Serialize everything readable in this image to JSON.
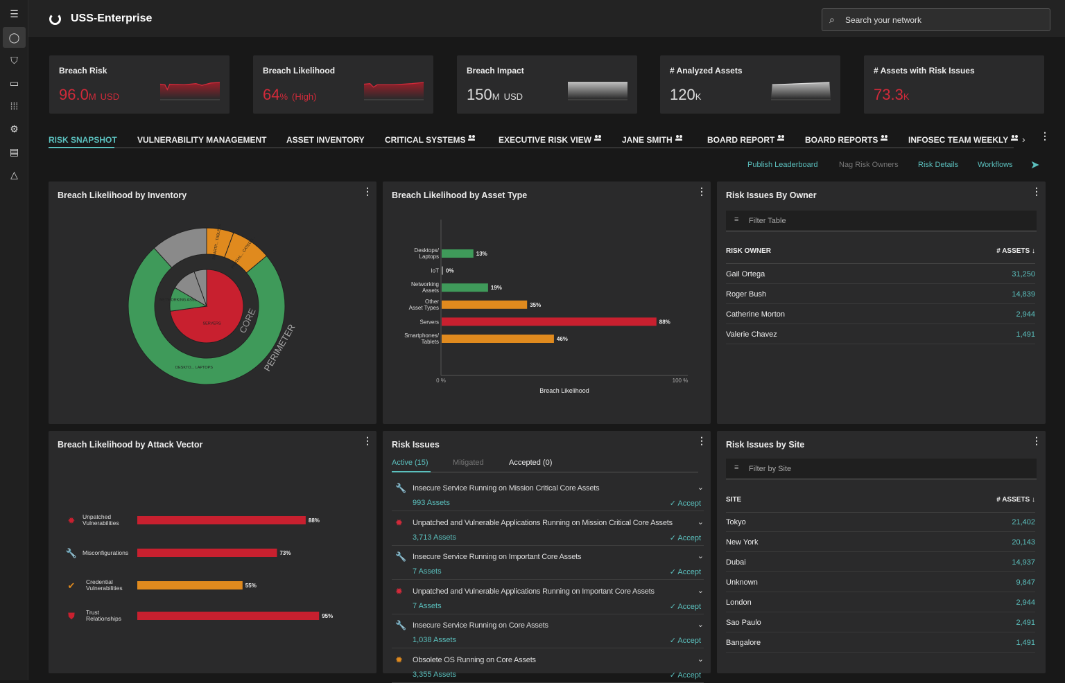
{
  "header": {
    "title": "USS-Enterprise",
    "search_placeholder": "Search your network"
  },
  "sidebar": {
    "items": [
      {
        "icon": "menu-icon"
      },
      {
        "icon": "dashboard-icon"
      },
      {
        "icon": "shield-icon"
      },
      {
        "icon": "devices-icon"
      },
      {
        "icon": "apps-grid-icon"
      },
      {
        "icon": "gear-icon"
      },
      {
        "icon": "report-icon"
      },
      {
        "icon": "warning-icon"
      }
    ]
  },
  "kpis": [
    {
      "label": "Breach Risk",
      "value": "96.0",
      "unit": "M",
      "suffix": "USD",
      "color": "#d22a3a"
    },
    {
      "label": "Breach Likelihood",
      "value": "64",
      "unit": "%",
      "suffix": "(High)",
      "color": "#d22a3a"
    },
    {
      "label": "Breach Impact",
      "value": "150",
      "unit": "M",
      "suffix": "USD",
      "color": "#dddddd"
    },
    {
      "label": "# Analyzed Assets",
      "value": "120",
      "unit": "K",
      "suffix": "",
      "color": "#dddddd"
    },
    {
      "label": "# Assets with Risk Issues",
      "value": "73.3",
      "unit": "K",
      "suffix": "",
      "color": "#d22a3a"
    }
  ],
  "tabs": [
    {
      "label": "RISK SNAPSHOT",
      "shared": false
    },
    {
      "label": "VULNERABILITY MANAGEMENT",
      "shared": false
    },
    {
      "label": "ASSET INVENTORY",
      "shared": false
    },
    {
      "label": "CRITICAL SYSTEMS",
      "shared": true
    },
    {
      "label": "EXECUTIVE RISK VIEW",
      "shared": true
    },
    {
      "label": "JANE SMITH",
      "shared": true
    },
    {
      "label": "BOARD REPORT",
      "shared": true
    },
    {
      "label": "BOARD REPORTS",
      "shared": true
    },
    {
      "label": "INFOSEC TEAM WEEKLY",
      "shared": true
    }
  ],
  "actions": {
    "publish": "Publish Leaderboard",
    "nag": "Nag Risk Owners",
    "details": "Risk Details",
    "workflows": "Workflows"
  },
  "colors": {
    "accent": "#5bc0be",
    "red": "#c8202f",
    "green": "#3f9a5a",
    "orange": "#e08a1e",
    "gray": "#8a8a8a"
  },
  "chart_data": [
    {
      "type": "pie",
      "title": "Breach Likelihood by Inventory",
      "rings": [
        {
          "label": "PERIMETER",
          "segments": [
            {
              "label": "",
              "share": 0.117,
              "color": "#8a8a8a"
            },
            {
              "label": "SMARTP... TABLETS",
              "share": 0.056,
              "color": "#e08a1e"
            },
            {
              "label": "PARTIAL... CATEGO...",
              "share": 0.083,
              "color": "#e08a1e"
            },
            {
              "label": "DESKTO... LAPTOPS",
              "share": 0.744,
              "color": "#3f9a5a"
            }
          ]
        },
        {
          "label": "CORE",
          "segments": [
            {
              "label": "SERVERS",
              "share": 0.728,
              "color": "#c8202f"
            },
            {
              "label": "NETWORKING ASSETS",
              "share": 0.106,
              "color": "#3f9a5a"
            },
            {
              "label": "",
              "share": 0.111,
              "color": "#8a8a8a"
            },
            {
              "label": "",
              "share": 0.055,
              "color": "#8a8a8a"
            }
          ]
        }
      ]
    },
    {
      "type": "bar",
      "title": "Breach Likelihood by Asset Type",
      "xlabel": "Breach Likelihood",
      "xlim": [
        0,
        100
      ],
      "xticks": [
        "0 %",
        "100 %"
      ],
      "categories": [
        "Desktops/ Laptops",
        "IoT",
        "Networking Assets",
        "Other Asset Types",
        "Servers",
        "Smartphones/ Tablets"
      ],
      "values": [
        13,
        0,
        19,
        35,
        88,
        46
      ],
      "colors": [
        "#3f9a5a",
        "#8a8a8a",
        "#3f9a5a",
        "#e08a1e",
        "#c8202f",
        "#e08a1e"
      ]
    },
    {
      "type": "bar",
      "title": "Breach Likelihood by Attack Vector",
      "xlim": [
        0,
        100
      ],
      "categories": [
        "Unpatched Vulnerabilities",
        "Misconfigurations",
        "Credential Vulnerabilities",
        "Trust Relationships"
      ],
      "icons": [
        "bug-icon",
        "wrench-icon",
        "badge-check-icon",
        "shield-icon"
      ],
      "values": [
        88,
        73,
        55,
        95
      ],
      "colors": [
        "#c8202f",
        "#c8202f",
        "#e08a1e",
        "#c8202f"
      ]
    }
  ],
  "owners": {
    "title": "Risk Issues By Owner",
    "filter_placeholder": "Filter Table",
    "col1": "RISK OWNER",
    "col2": "# ASSETS",
    "rows": [
      {
        "name": "Gail Ortega",
        "count": "31,250"
      },
      {
        "name": "Roger Bush",
        "count": "14,839"
      },
      {
        "name": "Catherine Morton",
        "count": "2,944"
      },
      {
        "name": "Valerie Chavez",
        "count": "1,491"
      }
    ]
  },
  "sites": {
    "title": "Risk Issues by Site",
    "filter_placeholder": "Filter by Site",
    "col1": "SITE",
    "col2": "# ASSETS",
    "rows": [
      {
        "name": "Tokyo",
        "count": "21,402"
      },
      {
        "name": "New York",
        "count": "20,143"
      },
      {
        "name": "Dubai",
        "count": "14,937"
      },
      {
        "name": "Unknown",
        "count": "9,847"
      },
      {
        "name": "London",
        "count": "2,944"
      },
      {
        "name": "Sao Paulo",
        "count": "2,491"
      },
      {
        "name": "Bangalore",
        "count": "1,491"
      }
    ]
  },
  "risk_issues": {
    "title": "Risk Issues",
    "tabs": [
      "Active (15)",
      "Mitigated",
      "Accepted (0)"
    ],
    "accept_label": "✓ Accept",
    "items": [
      {
        "title": "Insecure Service Running on Mission Critical Core Assets",
        "assets": "993 Assets",
        "icon": "wrench-icon",
        "color": "#d22a3a"
      },
      {
        "title": "Unpatched and Vulnerable Applications Running on Mission Critical Core Assets",
        "assets": "3,713 Assets",
        "icon": "bug-icon",
        "color": "#d22a3a"
      },
      {
        "title": "Insecure Service Running on Important Core Assets",
        "assets": "7 Assets",
        "icon": "wrench-icon",
        "color": "#d22a3a"
      },
      {
        "title": "Unpatched and Vulnerable Applications Running on Important Core Assets",
        "assets": "7 Assets",
        "icon": "bug-icon",
        "color": "#d22a3a"
      },
      {
        "title": "Insecure Service Running on Core Assets",
        "assets": "1,038 Assets",
        "icon": "wrench-icon",
        "color": "#e08a1e"
      },
      {
        "title": "Obsolete OS Running on Core Assets",
        "assets": "3,355 Assets",
        "icon": "bug-icon",
        "color": "#e08a1e"
      }
    ]
  }
}
